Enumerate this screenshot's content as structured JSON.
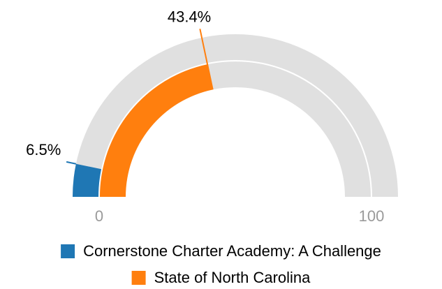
{
  "chart_data": {
    "type": "gauge",
    "ylim": [
      0,
      100
    ],
    "yticks": [
      0,
      100
    ],
    "track_color": "#e0e0e0",
    "series": [
      {
        "name": "Cornerstone Charter Academy: A Challenge",
        "color": "#1f77b4",
        "values": [
          6.5
        ],
        "value_labels": [
          "6.5%"
        ]
      },
      {
        "name": "State of North Carolina",
        "color": "#ff7f0e",
        "values": [
          43.4
        ],
        "value_labels": [
          "43.4%"
        ]
      }
    ]
  }
}
